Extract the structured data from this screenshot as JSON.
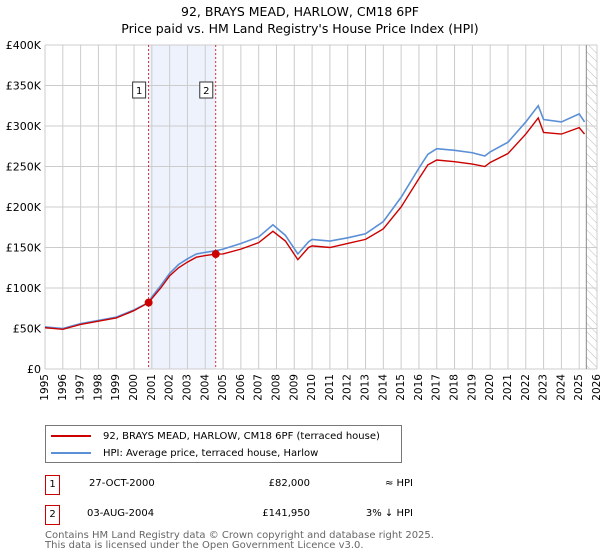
{
  "chart_data": {
    "type": "line",
    "title": "92, BRAYS MEAD, HARLOW, CM18 6PF",
    "subtitle": "Price paid vs. HM Land Registry's House Price Index (HPI)",
    "xlim": [
      1995,
      2026
    ],
    "ylim": [
      0,
      400000
    ],
    "x_ticks": [
      "1995",
      "1996",
      "1997",
      "1998",
      "1999",
      "2000",
      "2001",
      "2002",
      "2003",
      "2004",
      "2005",
      "2006",
      "2007",
      "2008",
      "2009",
      "2010",
      "2011",
      "2012",
      "2013",
      "2014",
      "2015",
      "2016",
      "2017",
      "2018",
      "2019",
      "2020",
      "2021",
      "2022",
      "2023",
      "2024",
      "2025",
      "2026"
    ],
    "y_ticks": [
      {
        "v": 0,
        "label": "£0"
      },
      {
        "v": 50000,
        "label": "£50K"
      },
      {
        "v": 100000,
        "label": "£100K"
      },
      {
        "v": 150000,
        "label": "£150K"
      },
      {
        "v": 200000,
        "label": "£200K"
      },
      {
        "v": 250000,
        "label": "£250K"
      },
      {
        "v": 300000,
        "label": "£300K"
      },
      {
        "v": 350000,
        "label": "£350K"
      },
      {
        "v": 400000,
        "label": "£400K"
      }
    ],
    "grid": true,
    "series": [
      {
        "name": "92, BRAYS MEAD, HARLOW, CM18 6PF (terraced house)",
        "color": "#cc0000",
        "x": [
          1995,
          1996,
          1996.5,
          1997,
          1998,
          1999,
          2000,
          2000.82,
          2001,
          2001.5,
          2002,
          2002.5,
          2003,
          2003.5,
          2004,
          2004.59,
          2005,
          2006,
          2007,
          2007.8,
          2008.5,
          2009.2,
          2009.8,
          2010,
          2011,
          2012,
          2013,
          2014,
          2015,
          2016,
          2016.5,
          2017,
          2018,
          2019,
          2019.7,
          2020,
          2021,
          2022,
          2022.7,
          2023,
          2024,
          2025,
          2025.3
        ],
        "y": [
          51000,
          49000,
          52000,
          55000,
          59000,
          63000,
          72000,
          82000,
          87000,
          100000,
          115000,
          125000,
          132000,
          138000,
          140000,
          141950,
          142000,
          148000,
          156000,
          170000,
          158000,
          135000,
          150000,
          152000,
          150000,
          155000,
          160000,
          173000,
          200000,
          235000,
          252000,
          258000,
          256000,
          253000,
          250000,
          255000,
          266000,
          290000,
          310000,
          292000,
          290000,
          298000,
          290000
        ]
      },
      {
        "name": "HPI: Average price, terraced house, Harlow",
        "color": "#5b8fd6",
        "x": [
          1995,
          1996,
          1996.5,
          1997,
          1998,
          1999,
          2000,
          2000.82,
          2001,
          2001.5,
          2002,
          2002.5,
          2003,
          2003.5,
          2004,
          2004.59,
          2005,
          2006,
          2007,
          2007.8,
          2008.5,
          2009.2,
          2009.8,
          2010,
          2011,
          2012,
          2013,
          2014,
          2015,
          2016,
          2016.5,
          2017,
          2018,
          2019,
          2019.7,
          2020,
          2021,
          2022,
          2022.7,
          2023,
          2024,
          2025,
          2025.3
        ],
        "y": [
          52000,
          50000,
          53000,
          56000,
          60000,
          64000,
          73000,
          82000,
          89000,
          103000,
          118000,
          129000,
          136000,
          142000,
          144000,
          146000,
          148000,
          155000,
          163000,
          178000,
          165000,
          142000,
          157000,
          160000,
          158000,
          162000,
          167000,
          182000,
          212000,
          248000,
          265000,
          272000,
          270000,
          267000,
          263000,
          268000,
          280000,
          305000,
          325000,
          308000,
          305000,
          315000,
          305000
        ]
      }
    ],
    "sales": [
      {
        "id": "1",
        "x": 2000.82,
        "y": 82000,
        "date": "27-OCT-2000",
        "price": "£82,000",
        "hpi_note": "≈ HPI"
      },
      {
        "id": "2",
        "x": 2004.59,
        "y": 141950,
        "date": "03-AUG-2004",
        "price": "£141,950",
        "hpi_note": "3% ↓ HPI"
      }
    ],
    "forecast_start": 2025.4
  },
  "footer": {
    "line1": "Contains HM Land Registry data © Crown copyright and database right 2025.",
    "line2": "This data is licensed under the Open Government Licence v3.0."
  }
}
